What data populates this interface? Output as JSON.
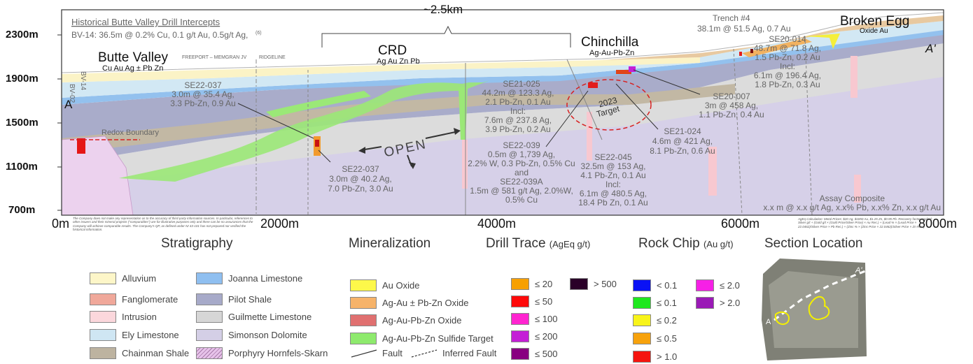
{
  "top": {
    "scale_label": "~2.5km",
    "hist_title": "Historical Butte Valley Drill Intercepts",
    "hist_detail": "BV-14: 36.5m @ 0.2% Cu, 0.1 g/t Au, 0.5g/t Ag,",
    "hist_sup": "(6)"
  },
  "places": {
    "butte": "Butte Valley",
    "butte_sub": "Cu Au Ag ± Pb Zn",
    "crd": "CRD",
    "crd_sub": "Ag Au Zn Pb",
    "chinchilla": "Chinchilla",
    "chinchilla_sub": "Ag-Au-Pb-Zn",
    "broken": "Broken Egg",
    "broken_sub": "Oxide Au",
    "a_left": "A",
    "a_right": "A'",
    "freeport": "FREEPORT – MEMGRAN JV",
    "ridgeline": "RIDGELINE",
    "redox": "Redox Boundary",
    "open": "OPEN",
    "target": "2023",
    "target2": "Target",
    "bv02": "BV-02",
    "bv14": "BV-14",
    "trench": "Trench #4",
    "trench2": "38.1m @ 51.5 Ag, 0.7 Au"
  },
  "axes": {
    "y_ticks": [
      "2300m",
      "1900m",
      "1500m",
      "1100m",
      "700m"
    ],
    "x_ticks": [
      "0m",
      "2000m",
      "4000m",
      "6000m",
      "8000m"
    ]
  },
  "drill": {
    "se22037a": [
      "SE22-037",
      "3.0m @ 35.4 Ag,",
      "3.3 Pb-Zn, 0.9 Au"
    ],
    "se22037b": [
      "SE22-037",
      "3.0m @ 40.2 Ag,",
      "7.0 Pb-Zn, 3.0 Au"
    ],
    "se21025": [
      "SE21-025",
      "44.2m @ 123.3 Ag,",
      "2.1 Pb-Zn, 0.1 Au",
      "Incl:",
      "7.6m @ 237.8 Ag,",
      "3.9 Pb-Zn, 0.2 Au"
    ],
    "se22039": [
      "SE22-039",
      "0.5m @ 1,739 Ag,",
      "2.2% W, 0.3 Pb-Zn, 0.5% Cu",
      "and",
      "SE22-039A",
      "1.5m @ 581 g/t Ag, 2.0%W,",
      "0.5% Cu"
    ],
    "se22045": [
      "SE22-045",
      "32.5m @ 153 Ag,",
      "4.1 Pb-Zn, 0.1 Au",
      "Incl:",
      "6.1m @ 480.5 Ag,",
      "18.4 Pb Zn, 0.1 Au"
    ],
    "se21024": [
      "SE21-024",
      "4.6m @ 421 Ag,",
      "8.1 Pb-Zn, 0.6 Au"
    ],
    "se20007": [
      "SE20-007",
      "3m @ 458 Ag,",
      "1.1 Pb-Zn, 0.4 Au"
    ],
    "se20014": [
      "SE20-014",
      "48.7m @ 71.8 Ag,",
      "1.5 Pb-Zn, 0.2 Au",
      "Incl:",
      "6.1m @ 196.4 Ag,",
      "1.8 Pb-Zn, 0.3 Au"
    ]
  },
  "assay": {
    "title": "Assay Composite",
    "template": "x.x m @ x.x g/t Ag, x.x% Pb, x.x% Zn, x.x g/t Au"
  },
  "disclaimer": "The Company does not make any representation as to the accuracy of third-party information sources. In particular, references to other issuers and their mineral projects (\"comparables\") are for illustrative purposes only and there can be no assurances that the Company will achieve comparable results. The Company's QP, as defined under NI 43-101 has not prepared nor verified the historical information.",
  "calc_note": "AgEq Calculation: Metal Prices: $20 Ag, $1850 Au, $1.25 Zn, $0.95 Pb. Recovery factor applied: Silver g/t + (Gold g/t × (Gold Price/Silver Price) × Au Rec.) + (Lead % × (Lead Price × 22.0462)/Silver Price × Pb Rec.) + (Zinc % × (Zinc Price × 22.0462)/Silver Price × Zn Rec.)",
  "legend": {
    "strat_title": "Stratigraphy",
    "strat": [
      {
        "label": "Alluvium",
        "color": "#fdf6c8"
      },
      {
        "label": "Fanglomerate",
        "color": "#f0a89a"
      },
      {
        "label": "Intrusion",
        "color": "#fbd7dc"
      },
      {
        "label": "Ely Limestone",
        "color": "#cfe6f3"
      },
      {
        "label": "Chainman Shale",
        "color": "#bdb3a0"
      },
      {
        "label": "Joanna Limestone",
        "color": "#8fbff0"
      },
      {
        "label": "Pilot Shale",
        "color": "#a7aac9"
      },
      {
        "label": "Guilmette Limestone",
        "color": "#d6d6d6"
      },
      {
        "label": "Simonson Dolomite",
        "color": "#d4cfe6"
      },
      {
        "label": "Porphyry Hornfels-Skarn",
        "color": "#e7c3ea"
      }
    ],
    "min_title": "Mineralization",
    "min": [
      {
        "label": "Au Oxide",
        "color": "#fdf84a"
      },
      {
        "label": "Ag-Au ± Pb-Zn Oxide",
        "color": "#f6b36a"
      },
      {
        "label": "Ag-Au-Pb-Zn Oxide",
        "color": "#e07070"
      },
      {
        "label": "Ag-Au-Pb-Zn Sulfide Target",
        "color": "#8eea6d"
      }
    ],
    "fault": "Fault",
    "inferred_fault": "Inferred Fault",
    "drill_title": "Drill Trace",
    "drill_unit": "(AgEq g/t)",
    "drill": [
      {
        "label": "≤ 20",
        "color": "#f7a000"
      },
      {
        "label": "≤ 50",
        "color": "#ff0a0a"
      },
      {
        "label": "≤ 100",
        "color": "#ff24d0"
      },
      {
        "label": "≤ 200",
        "color": "#c41fd6"
      },
      {
        "label": "≤ 500",
        "color": "#880080"
      },
      {
        "label": "> 500",
        "color": "#2a0028"
      }
    ],
    "rock_title": "Rock Chip",
    "rock_unit": "(Au g/t)",
    "rock": [
      {
        "label": "< 0.1",
        "color": "#0a12f5"
      },
      {
        "label": "≤ 0.1",
        "color": "#1ee81e"
      },
      {
        "label": "≤ 0.2",
        "color": "#f8f41a"
      },
      {
        "label": "≤ 0.5",
        "color": "#f7a20c"
      },
      {
        "label": "> 1.0",
        "color": "#f5140f"
      },
      {
        "label": "≤ 2.0",
        "color": "#f620e6"
      },
      {
        "label": "> 2.0",
        "color": "#9a1ab6"
      }
    ],
    "loc_title": "Section Location",
    "loc_a": "A",
    "loc_a2": "A'"
  }
}
